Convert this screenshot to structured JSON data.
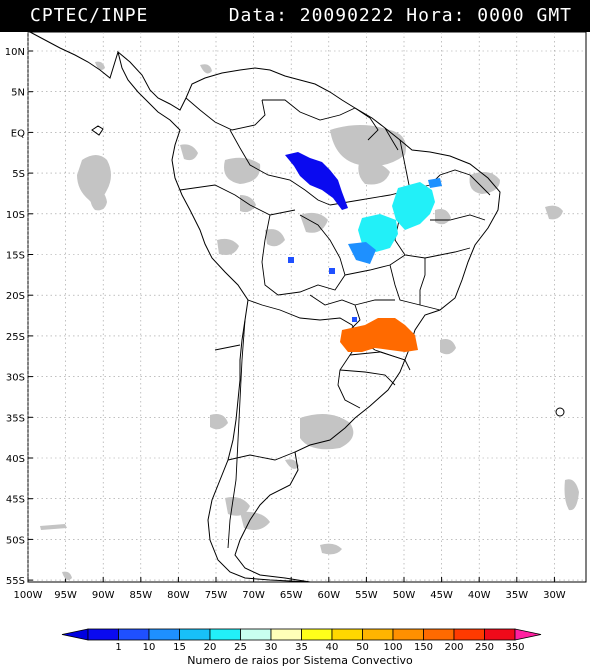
{
  "header": {
    "left": "CPTEC/INPE",
    "right": "Data: 20090222 Hora: 0000 GMT"
  },
  "axes": {
    "lat_labels": [
      "10N",
      "5N",
      "EQ",
      "5S",
      "10S",
      "15S",
      "20S",
      "25S",
      "30S",
      "35S",
      "40S",
      "45S",
      "50S",
      "55S"
    ],
    "lon_labels": [
      "100W",
      "95W",
      "90W",
      "85W",
      "80W",
      "75W",
      "70W",
      "65W",
      "60W",
      "55W",
      "50W",
      "45W",
      "40W",
      "35W",
      "30W"
    ]
  },
  "legend": {
    "title": "Numero de raios por Sistema Convectivo",
    "bins": [
      {
        "label": "1",
        "color": "#0a0af0"
      },
      {
        "label": "10",
        "color": "#1f50ff"
      },
      {
        "label": "15",
        "color": "#1e90ff"
      },
      {
        "label": "20",
        "color": "#18c0f8"
      },
      {
        "label": "25",
        "color": "#22f0f8"
      },
      {
        "label": "30",
        "color": "#c8fff0"
      },
      {
        "label": "35",
        "color": "#ffffb8"
      },
      {
        "label": "40",
        "color": "#ffff1a"
      },
      {
        "label": "50",
        "color": "#ffd700"
      },
      {
        "label": "100",
        "color": "#ffb400"
      },
      {
        "label": "150",
        "color": "#ff9000"
      },
      {
        "label": "200",
        "color": "#ff6a00"
      },
      {
        "label": "250",
        "color": "#ff3a00"
      },
      {
        "label": "350",
        "color": "#f00a1a"
      }
    ],
    "end_left_color": "#0000e0",
    "end_right_color": "#ff20a0"
  },
  "colors": {
    "cloud_gray": "#c4c4c4",
    "grid": "#9a9a9a"
  }
}
